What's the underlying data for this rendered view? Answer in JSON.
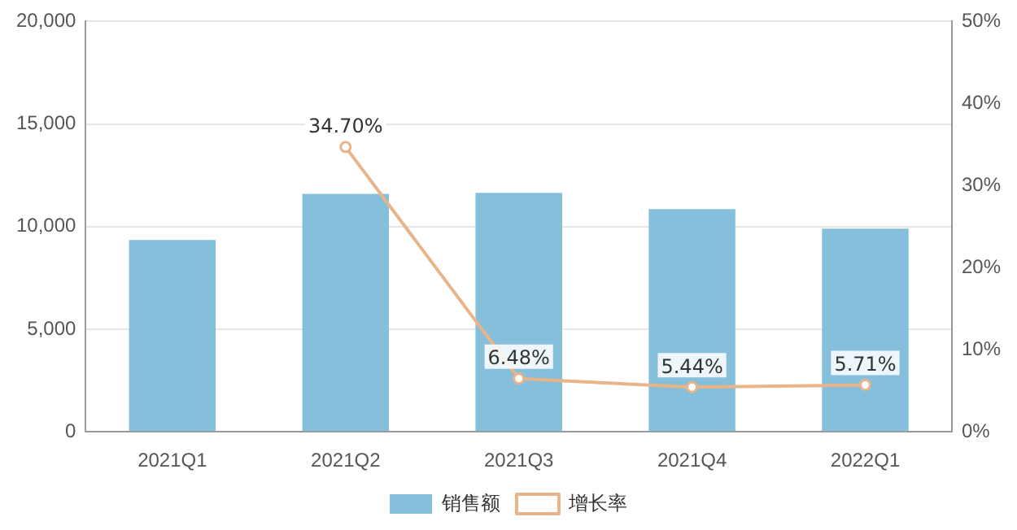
{
  "chart_data": {
    "type": "bar",
    "categories": [
      "2021Q1",
      "2021Q2",
      "2021Q3",
      "2021Q4",
      "2022Q1"
    ],
    "series": [
      {
        "name": "销售额",
        "type": "bar",
        "color": "#86bfdc",
        "values": [
          9350,
          11600,
          11650,
          10850,
          9900
        ]
      },
      {
        "name": "增长率",
        "type": "line",
        "axis": "y2",
        "color": "#e9b488",
        "values": [
          null,
          34.7,
          6.48,
          5.44,
          5.71
        ],
        "value_labels": [
          null,
          "34.70%",
          "6.48%",
          "5.44%",
          "5.71%"
        ]
      }
    ],
    "ylim": [
      0,
      20000
    ],
    "yticks": [
      0,
      {
        "value": 5000,
        "label": "5,000"
      },
      {
        "value": 10000,
        "label": "10,000"
      },
      {
        "value": 15000,
        "label": "15,000"
      },
      {
        "value": 20000,
        "label": "20,000"
      }
    ],
    "y2lim": [
      0,
      50
    ],
    "y2ticks": [
      {
        "value": 0,
        "label": "0%"
      },
      {
        "value": 10,
        "label": "10%"
      },
      {
        "value": 20,
        "label": "20%"
      },
      {
        "value": 30,
        "label": "30%"
      },
      {
        "value": 40,
        "label": "40%"
      },
      {
        "value": 50,
        "label": "50%"
      }
    ],
    "grid": "y",
    "legend": "bottom",
    "marker": "circle",
    "line_style": "solid"
  }
}
